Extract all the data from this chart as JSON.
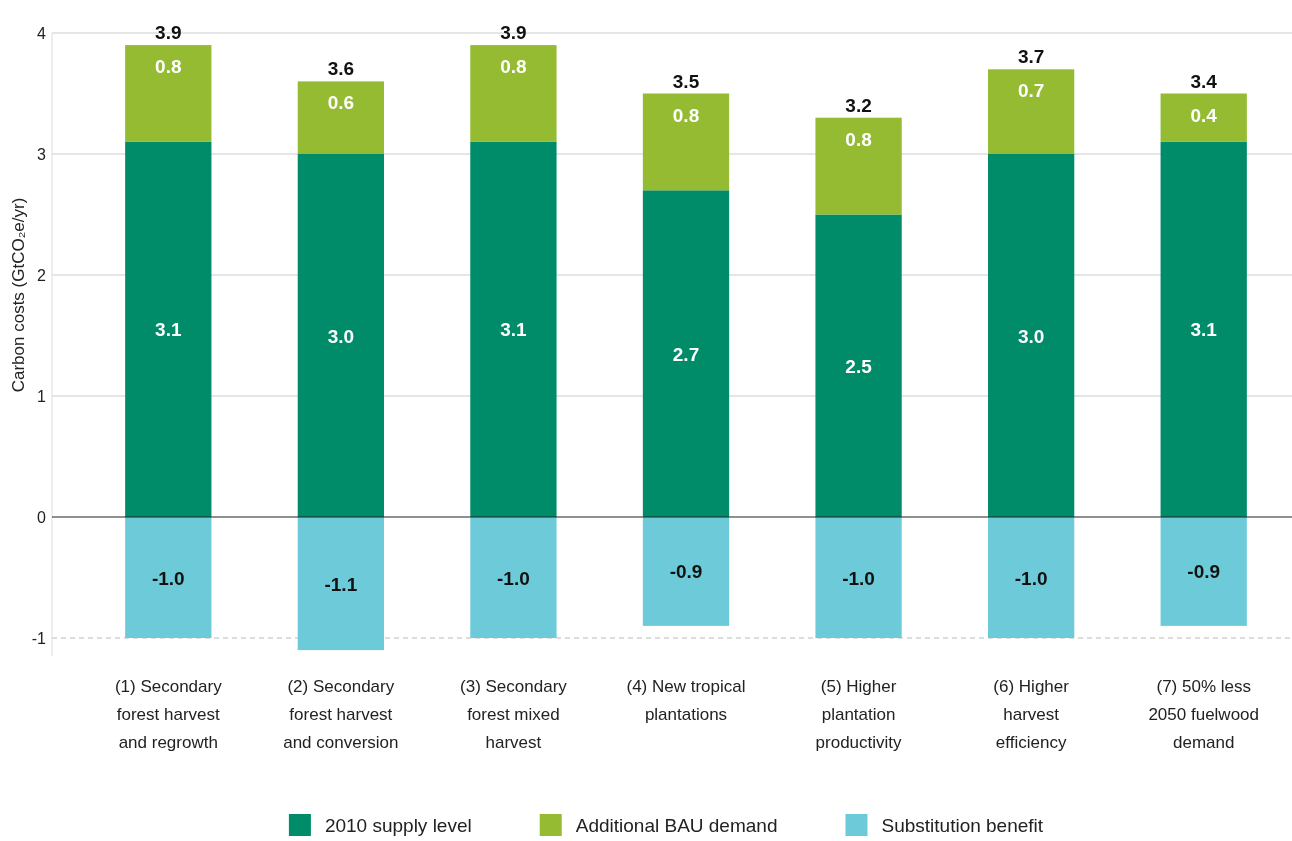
{
  "chart_data": {
    "type": "bar",
    "stacked": true,
    "ylabel": "Carbon costs (GtCO₂e/yr)",
    "categories": [
      "(1) Secondary forest harvest and regrowth",
      "(2) Secondary forest harvest and conversion",
      "(3) Secondary forest mixed harvest",
      "(4) New tropical plantations",
      "(5) Higher plantation productivity",
      "(6) Higher harvest efficiency",
      "(7) 50% less 2050 fuelwood demand"
    ],
    "series": [
      {
        "name": "2010 supply level",
        "color": "#008c69",
        "values": [
          3.1,
          3.0,
          3.1,
          2.7,
          2.5,
          3.0,
          3.1
        ],
        "value_labels": [
          "3.1",
          "3.0",
          "3.1",
          "2.7",
          "2.5",
          "3.0",
          "3.1"
        ]
      },
      {
        "name": "Additional BAU demand",
        "color": "#94bb32",
        "values": [
          0.8,
          0.6,
          0.8,
          0.8,
          0.8,
          0.7,
          0.4
        ],
        "value_labels": [
          "0.8",
          "0.6",
          "0.8",
          "0.8",
          "0.8",
          "0.7",
          "0.4"
        ]
      },
      {
        "name": "Substitution benefit",
        "color": "#6dcbd9",
        "values": [
          -1.0,
          -1.1,
          -1.0,
          -0.9,
          -1.0,
          -1.0,
          -0.9
        ],
        "value_labels": [
          "-1.0",
          "-1.1",
          "-1.0",
          "-0.9",
          "-1.0",
          "-1.0",
          "-0.9"
        ]
      }
    ],
    "annotations": [
      {
        "text": "3.9",
        "x": "(1) Secondary forest harvest and regrowth",
        "y": 3.9
      },
      {
        "text": "3.6",
        "x": "(2) Secondary forest harvest and conversion",
        "y": 3.6
      },
      {
        "text": "3.9",
        "x": "(3) Secondary forest mixed harvest",
        "y": 3.9
      },
      {
        "text": "3.5",
        "x": "(4) New tropical plantations",
        "y": 3.5
      },
      {
        "text": "3.2",
        "x": "(5) Higher plantation productivity",
        "y": 3.3
      },
      {
        "text": "3.7",
        "x": "(6) Higher harvest efficiency",
        "y": 3.7
      },
      {
        "text": "3.4",
        "x": "(7) 50% less 2050 fuelwood demand",
        "y": 3.5
      }
    ],
    "ref_lines": [
      {
        "axis": "y",
        "value": -1,
        "color": "#bbbbbb",
        "line_style": "dashed"
      }
    ],
    "ylim": [
      -1.15,
      4
    ],
    "yticks": [
      -1,
      0,
      1,
      2,
      3,
      4
    ],
    "grid": "y",
    "legend": "bottom"
  }
}
